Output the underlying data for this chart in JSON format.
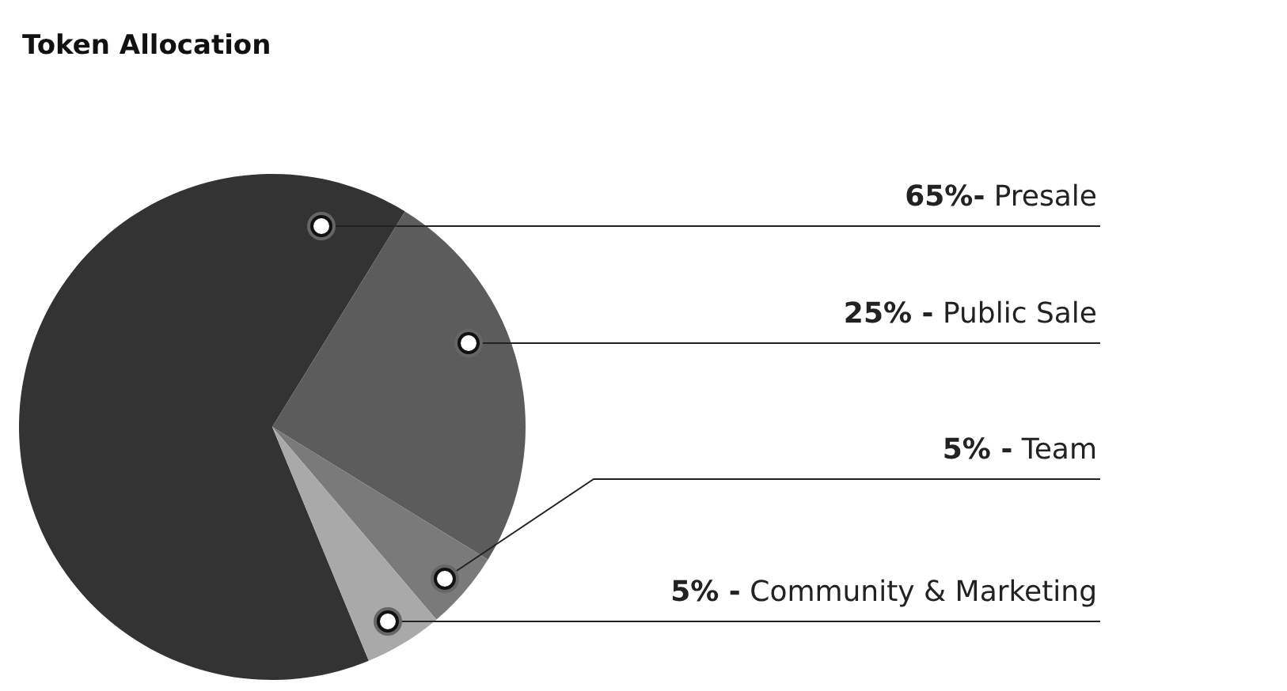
{
  "chart_data": {
    "type": "pie",
    "title": "Token Allocation",
    "categories": [
      "Presale",
      "Public Sale",
      "Team",
      "Community & Marketing"
    ],
    "values": [
      65,
      25,
      5,
      5
    ],
    "colors": [
      "#333333",
      "#5c5c5c",
      "#7a7a7a",
      "#a9a9a9"
    ],
    "value_labels": [
      "65%-",
      "25% -",
      "5% -",
      "5% -"
    ]
  }
}
